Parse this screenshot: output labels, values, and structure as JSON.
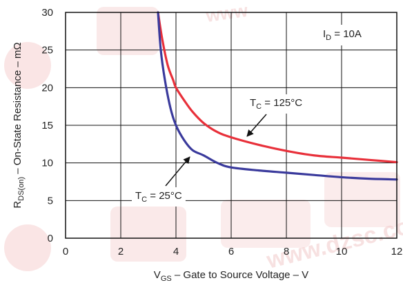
{
  "chart_data": {
    "type": "line",
    "xlabel": {
      "main": "V",
      "sub": "GS",
      "rest": " – Gate to Source Voltage – V"
    },
    "ylabel": {
      "main": "R",
      "sub": "DS(on)",
      "rest": " – On-State Resistance – mΩ"
    },
    "xlim": [
      0,
      12
    ],
    "ylim": [
      0,
      30
    ],
    "xticks": [
      "0",
      "2",
      "4",
      "6",
      "8",
      "10",
      "12"
    ],
    "yticks": [
      "0",
      "5",
      "10",
      "15",
      "20",
      "25",
      "30"
    ],
    "grid": true,
    "condition": {
      "main": "I",
      "sub": "D",
      "rest": " = 10A"
    },
    "series": [
      {
        "name": "T_C = 125°C",
        "color": "#e8303a",
        "label": {
          "main": "T",
          "sub": "C",
          "rest": " = 125°C"
        },
        "x": [
          3.35,
          3.5,
          3.7,
          3.9,
          4.0,
          4.3,
          4.6,
          5.0,
          5.5,
          6.0,
          7.0,
          8.0,
          9.0,
          10.0,
          11.0,
          12.0
        ],
        "y": [
          30.0,
          26.5,
          23.0,
          21.0,
          20.0,
          18.3,
          16.8,
          15.3,
          14.1,
          13.4,
          12.4,
          11.6,
          11.0,
          10.7,
          10.4,
          10.1
        ]
      },
      {
        "name": "T_C = 25°C",
        "color": "#3a3a9c",
        "label": {
          "main": "T",
          "sub": "C",
          "rest": " = 25°C"
        },
        "x": [
          3.35,
          3.45,
          3.6,
          3.8,
          4.0,
          4.3,
          4.6,
          5.0,
          5.5,
          6.0,
          7.0,
          8.0,
          9.0,
          10.0,
          11.0,
          12.0
        ],
        "y": [
          30.0,
          25.0,
          21.0,
          17.3,
          15.0,
          13.0,
          11.7,
          11.0,
          10.0,
          9.4,
          9.0,
          8.7,
          8.4,
          8.1,
          7.9,
          7.8
        ]
      }
    ]
  }
}
